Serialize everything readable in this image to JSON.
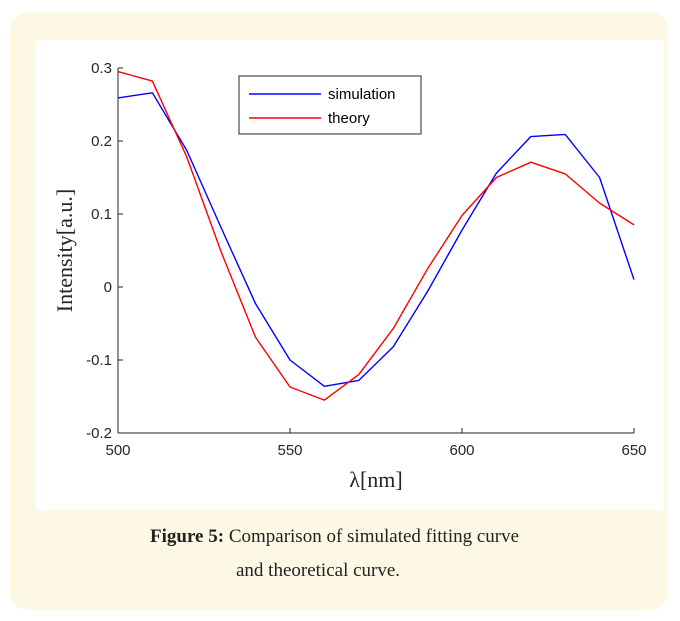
{
  "chart_data": {
    "type": "line",
    "title": "",
    "xlabel": "λ[nm]",
    "ylabel": "Intensity[a.u.]",
    "xlim": [
      500,
      650
    ],
    "ylim": [
      -0.2,
      0.3
    ],
    "xticks": [
      500,
      550,
      600,
      650
    ],
    "yticks": [
      -0.2,
      -0.1,
      0,
      0.1,
      0.2,
      0.3
    ],
    "xtick_labels": [
      "500",
      "550",
      "600",
      "650"
    ],
    "ytick_labels": [
      "-0.2",
      "-0.1",
      "0",
      "0.1",
      "0.2",
      "0.3"
    ],
    "x": [
      500,
      510,
      520,
      530,
      540,
      550,
      560,
      570,
      580,
      590,
      600,
      610,
      620,
      630,
      640,
      650
    ],
    "series": [
      {
        "name": "simulation",
        "color": "#0000ff",
        "values": [
          0.259,
          0.266,
          0.187,
          0.081,
          -0.023,
          -0.1,
          -0.136,
          -0.128,
          -0.082,
          -0.006,
          0.078,
          0.156,
          0.206,
          0.209,
          0.15,
          0.01
        ]
      },
      {
        "name": "theory",
        "color": "#ff0000",
        "values": [
          0.295,
          0.282,
          0.178,
          0.048,
          -0.069,
          -0.137,
          -0.155,
          -0.12,
          -0.057,
          0.025,
          0.098,
          0.15,
          0.171,
          0.155,
          0.115,
          0.085
        ]
      }
    ],
    "legend_position": "top-center",
    "grid": false
  },
  "caption": {
    "label": "Figure 5:",
    "text_line1": " Comparison of simulated fitting curve",
    "text_line2": "and theoretical curve."
  }
}
